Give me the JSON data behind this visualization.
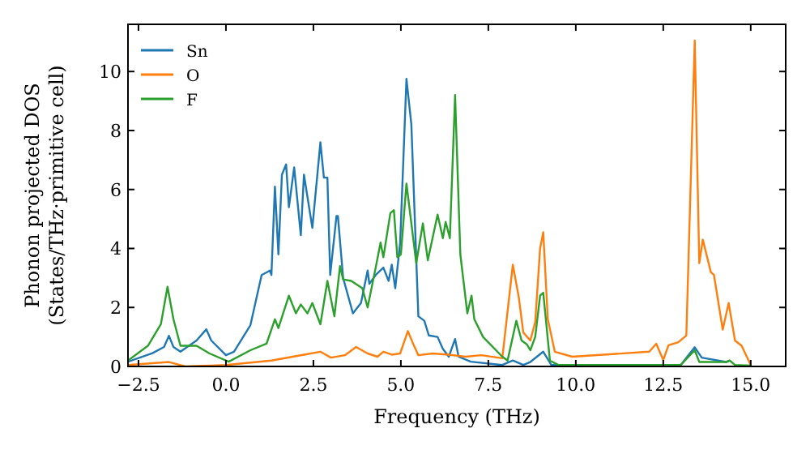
{
  "chart_data": {
    "type": "line",
    "xlabel": "Frequency (THz)",
    "ylabel": "Phonon projected DOS\n(States/THz·primitive cell)",
    "xlim": [
      -2.8,
      16.0
    ],
    "ylim": [
      0,
      11.6
    ],
    "xticks": [
      {
        "value": -2.5,
        "label": "−2.5"
      },
      {
        "value": 0,
        "label": "0.0"
      },
      {
        "value": 2.5,
        "label": "2.5"
      },
      {
        "value": 5,
        "label": "5.0"
      },
      {
        "value": 7.5,
        "label": "7.5"
      },
      {
        "value": 10,
        "label": "10.0"
      },
      {
        "value": 12.5,
        "label": "12.5"
      },
      {
        "value": 15,
        "label": "15.0"
      }
    ],
    "yticks": [
      0,
      2,
      4,
      6,
      8,
      10
    ],
    "grid": false,
    "legend": "top left",
    "marker": "none",
    "line_style": "solid",
    "series": [
      {
        "name": "Sn",
        "color": "#1f77b4",
        "x": [
          -2.8,
          -2.1,
          -1.77,
          -1.63,
          -1.5,
          -1.3,
          -0.84,
          -0.56,
          -0.42,
          0,
          0.23,
          0.7,
          1.02,
          1.26,
          1.3,
          1.4,
          1.5,
          1.6,
          1.72,
          1.8,
          1.95,
          2.14,
          2.23,
          2.47,
          2.7,
          2.8,
          2.9,
          2.98,
          3.16,
          3.2,
          3.35,
          3.63,
          3.86,
          4.05,
          4.1,
          4.28,
          4.5,
          4.65,
          4.74,
          4.84,
          4.98,
          5.16,
          5.3,
          5.5,
          5.67,
          5.8,
          6.05,
          6.2,
          6.37,
          6.55,
          6.65,
          7.0,
          7.9,
          8.2,
          8.5,
          8.7,
          9.07,
          9.3,
          13.0,
          13.4,
          13.6,
          14.3,
          14.4
        ],
        "values": [
          0.16,
          0.45,
          0.66,
          1.04,
          0.66,
          0.5,
          0.88,
          1.26,
          0.88,
          0.38,
          0.5,
          1.4,
          3.1,
          3.25,
          3.1,
          6.1,
          3.8,
          6.5,
          6.85,
          5.4,
          6.75,
          4.45,
          6.5,
          4.7,
          7.6,
          6.4,
          6.4,
          3.1,
          5.1,
          5.1,
          3.0,
          1.8,
          2.15,
          3.25,
          2.8,
          3.1,
          3.35,
          2.9,
          3.45,
          2.65,
          4.2,
          9.75,
          8.2,
          1.7,
          1.55,
          1.05,
          1.0,
          0.6,
          0.33,
          0.93,
          0.33,
          0.16,
          0.05,
          0.2,
          0.05,
          0.15,
          0.5,
          0.05,
          0.05,
          0.65,
          0.3,
          0.15,
          0.2
        ]
      },
      {
        "name": "O",
        "color": "#ff7f0e",
        "x": [
          -2.8,
          -1.63,
          -1.16,
          0,
          1.3,
          2.23,
          2.7,
          3.0,
          3.4,
          3.72,
          4.05,
          4.33,
          4.5,
          4.74,
          4.98,
          5.2,
          5.35,
          5.5,
          5.9,
          6.37,
          6.84,
          7.3,
          7.9,
          8.2,
          8.37,
          8.5,
          8.7,
          8.84,
          8.98,
          9.07,
          9.2,
          9.4,
          9.9,
          12.1,
          12.3,
          12.5,
          12.65,
          12.93,
          13.16,
          13.4,
          13.53,
          13.63,
          13.86,
          13.95,
          14.2,
          14.37,
          14.55,
          14.74,
          15.0
        ],
        "values": [
          0.05,
          0.15,
          0,
          0.05,
          0.2,
          0.4,
          0.5,
          0.3,
          0.38,
          0.66,
          0.44,
          0.33,
          0.5,
          0.4,
          0.44,
          1.2,
          0.77,
          0.38,
          0.44,
          0.4,
          0.33,
          0.38,
          0.28,
          3.45,
          2.35,
          1.15,
          0.88,
          1.5,
          4.0,
          4.55,
          1.6,
          0.5,
          0.33,
          0.5,
          0.77,
          0.22,
          0.72,
          0.82,
          1.05,
          11.05,
          3.5,
          4.3,
          3.2,
          3.1,
          1.25,
          2.15,
          0.88,
          0.7,
          0.05
        ]
      },
      {
        "name": "F",
        "color": "#2ca02c",
        "x": [
          -2.8,
          -2.23,
          -1.86,
          -1.67,
          -1.5,
          -1.3,
          -0.84,
          -0.47,
          0.08,
          0.7,
          1.16,
          1.4,
          1.5,
          1.8,
          2.0,
          2.14,
          2.33,
          2.47,
          2.7,
          2.9,
          3.1,
          3.26,
          3.35,
          3.58,
          3.9,
          4.05,
          4.28,
          4.42,
          4.5,
          4.7,
          4.8,
          4.9,
          5.0,
          5.16,
          5.44,
          5.63,
          5.77,
          6.05,
          6.2,
          6.28,
          6.4,
          6.55,
          6.7,
          6.9,
          7.02,
          7.1,
          7.35,
          7.9,
          8.05,
          8.3,
          8.45,
          8.6,
          8.7,
          8.84,
          8.98,
          9.07,
          9.26,
          9.5,
          13.0,
          13.4,
          13.53,
          14.3,
          14.4,
          14.55,
          15.0
        ],
        "values": [
          0.2,
          0.7,
          1.43,
          2.7,
          1.6,
          0.7,
          0.7,
          0.44,
          0.16,
          0.55,
          0.77,
          1.6,
          1.3,
          2.4,
          1.8,
          2.1,
          1.8,
          2.15,
          1.43,
          2.9,
          1.7,
          3.4,
          2.95,
          2.9,
          2.65,
          2.0,
          3.35,
          4.2,
          3.7,
          5.2,
          5.3,
          3.7,
          3.8,
          6.2,
          3.5,
          4.85,
          3.6,
          5.15,
          4.35,
          4.9,
          4.35,
          9.2,
          3.8,
          1.8,
          2.4,
          1.6,
          1.0,
          0.33,
          0.2,
          1.55,
          0.88,
          0.75,
          0.55,
          1.0,
          2.4,
          2.5,
          0.2,
          0.05,
          0.05,
          0.55,
          0.15,
          0.15,
          0.2,
          0.05,
          0.03
        ]
      }
    ]
  }
}
